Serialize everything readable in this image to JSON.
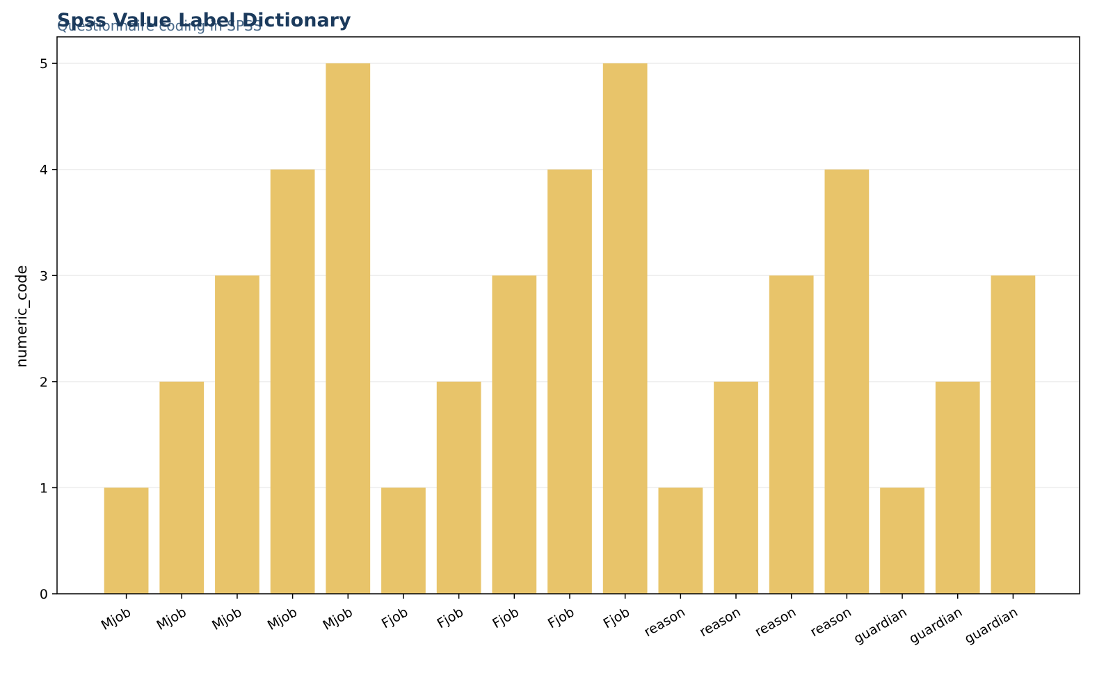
{
  "chart_data": {
    "type": "bar",
    "title": "Spss Value Label Dictionary",
    "subtitle": "Questionnaire coding in SPSS",
    "xlabel": "",
    "ylabel": "numeric_code",
    "categories": [
      "Mjob",
      "Mjob",
      "Mjob",
      "Mjob",
      "Mjob",
      "Fjob",
      "Fjob",
      "Fjob",
      "Fjob",
      "Fjob",
      "reason",
      "reason",
      "reason",
      "reason",
      "guardian",
      "guardian",
      "guardian"
    ],
    "values": [
      1,
      2,
      3,
      4,
      5,
      1,
      2,
      3,
      4,
      5,
      1,
      2,
      3,
      4,
      1,
      2,
      3
    ],
    "ylim": [
      0,
      5.25
    ],
    "yticks": [
      0,
      1,
      2,
      3,
      4,
      5
    ],
    "grid": "horizontal",
    "colors": {
      "bar": "#e8c46a",
      "title": "#1b3a5c",
      "subtitle": "#4a6a8a",
      "grid": "#eeeeee",
      "axis": "#000000"
    }
  }
}
